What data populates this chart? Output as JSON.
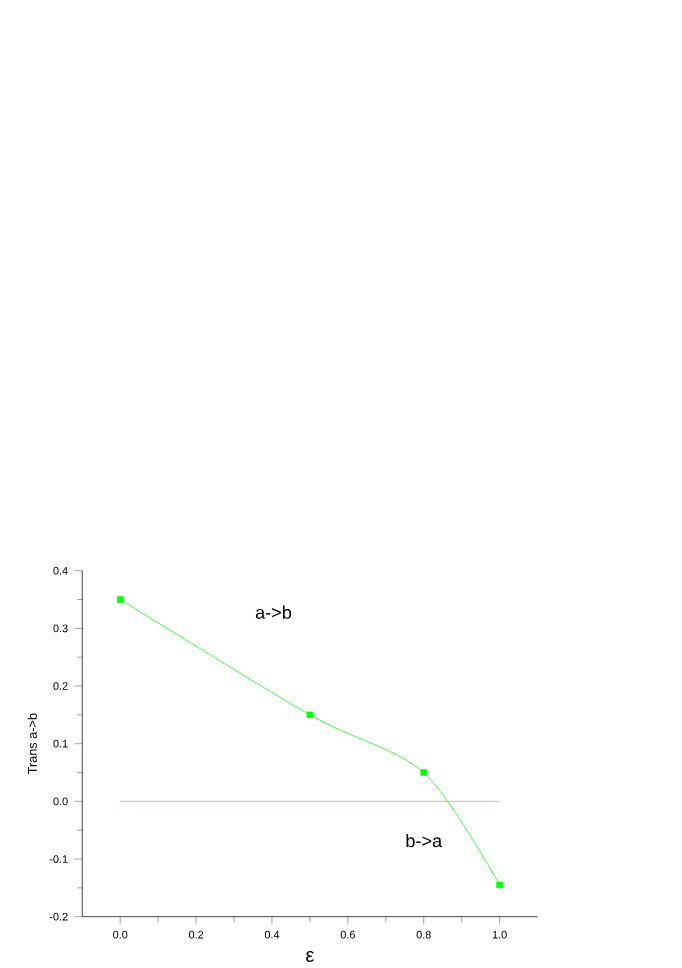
{
  "chart_data": {
    "type": "line",
    "xlabel": "ε",
    "ylabel": "Trans a->b",
    "annotations": [
      "a->b",
      "b->a"
    ],
    "marker": "square",
    "series": [
      {
        "x": [
          0,
          0.5,
          0.8,
          1.0
        ],
        "values": [
          0.35,
          0.15,
          0.05,
          -0.145
        ],
        "color": "#00ff00"
      },
      {
        "x": [
          0,
          1.0
        ],
        "values": [
          0,
          0
        ],
        "color": "#ff8080",
        "marker": "none"
      }
    ],
    "xlim": [
      -0.1,
      1.1
    ],
    "ylim": [
      -0.2,
      0.4
    ],
    "xticks": [
      {
        "value": 0,
        "label": "0.0"
      },
      {
        "value": 0.2,
        "label": "0.2"
      },
      {
        "value": 0.4,
        "label": "0.4"
      },
      {
        "value": 0.6,
        "label": "0.6"
      },
      {
        "value": 0.8,
        "label": "0.8"
      },
      {
        "value": 1.0,
        "label": "1.0"
      }
    ],
    "yticks": [
      {
        "value": -0.2,
        "label": "-0.2"
      },
      {
        "value": -0.1,
        "label": "-0.1"
      },
      {
        "value": 0.0,
        "label": "0.0"
      },
      {
        "value": 0.1,
        "label": "0.1"
      },
      {
        "value": 0.2,
        "label": "0.2"
      },
      {
        "value": 0.3,
        "label": "0.3"
      },
      {
        "value": 0.4,
        "label": "0.4"
      }
    ]
  }
}
